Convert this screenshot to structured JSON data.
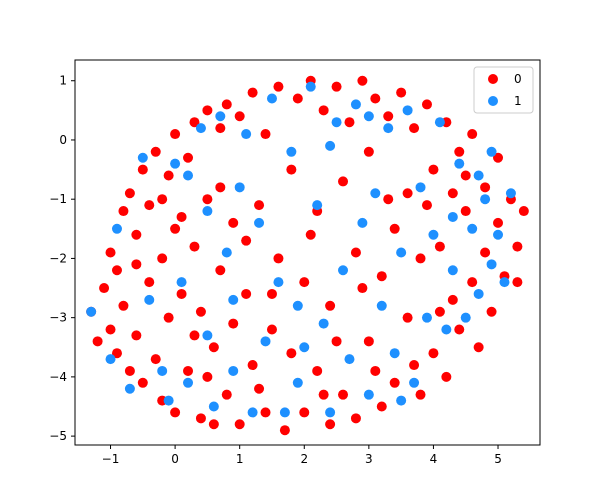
{
  "chart_data": {
    "type": "scatter",
    "title": "",
    "xlabel": "",
    "ylabel": "",
    "xlim": [
      -1.55,
      5.65
    ],
    "ylim": [
      -5.15,
      1.35
    ],
    "x_ticks": [
      -1,
      0,
      1,
      2,
      3,
      4,
      5
    ],
    "y_ticks": [
      1,
      0,
      -1,
      -2,
      -3,
      -4,
      -5
    ],
    "x_tick_labels": [
      "−1",
      "0",
      "1",
      "2",
      "3",
      "4",
      "5"
    ],
    "y_tick_labels": [
      "1",
      "0",
      "−1",
      "−2",
      "−3",
      "−4",
      "−5"
    ],
    "grid": false,
    "legend": {
      "placement": "top-right",
      "entries": [
        "0",
        "1"
      ]
    },
    "series": [
      {
        "name": "0",
        "color": "#ff0000",
        "points": [
          [
            -1.3,
            -2.9
          ],
          [
            -1.2,
            -3.4
          ],
          [
            -1.1,
            -2.5
          ],
          [
            -1.0,
            -3.2
          ],
          [
            -1.0,
            -1.9
          ],
          [
            -0.9,
            -3.6
          ],
          [
            -0.9,
            -2.2
          ],
          [
            -0.8,
            -1.2
          ],
          [
            -0.8,
            -2.8
          ],
          [
            -0.7,
            -3.9
          ],
          [
            -0.7,
            -0.9
          ],
          [
            -0.6,
            -1.6
          ],
          [
            -0.6,
            -3.3
          ],
          [
            -0.5,
            -0.5
          ],
          [
            -0.5,
            -4.1
          ],
          [
            -0.4,
            -2.4
          ],
          [
            -0.4,
            -1.1
          ],
          [
            -0.3,
            -3.7
          ],
          [
            -0.3,
            -0.2
          ],
          [
            -0.2,
            -2.0
          ],
          [
            -0.2,
            -4.4
          ],
          [
            -0.1,
            -0.6
          ],
          [
            -0.1,
            -3.0
          ],
          [
            0.0,
            0.1
          ],
          [
            0.0,
            -1.5
          ],
          [
            0.0,
            -4.6
          ],
          [
            0.1,
            -2.6
          ],
          [
            0.2,
            -0.3
          ],
          [
            0.2,
            -3.9
          ],
          [
            0.3,
            0.3
          ],
          [
            0.3,
            -1.8
          ],
          [
            0.4,
            -4.7
          ],
          [
            0.4,
            -2.9
          ],
          [
            0.5,
            0.5
          ],
          [
            0.5,
            -1.0
          ],
          [
            0.6,
            -3.5
          ],
          [
            0.6,
            -4.8
          ],
          [
            0.7,
            0.2
          ],
          [
            0.7,
            -2.2
          ],
          [
            0.8,
            -4.3
          ],
          [
            0.8,
            0.6
          ],
          [
            0.9,
            -1.4
          ],
          [
            0.9,
            -3.1
          ],
          [
            1.0,
            -4.8
          ],
          [
            1.0,
            0.4
          ],
          [
            1.1,
            -2.6
          ],
          [
            1.2,
            -3.8
          ],
          [
            1.2,
            0.8
          ],
          [
            1.3,
            -1.1
          ],
          [
            1.4,
            -4.6
          ],
          [
            1.4,
            0.1
          ],
          [
            1.5,
            -3.2
          ],
          [
            1.6,
            0.9
          ],
          [
            1.6,
            -2.0
          ],
          [
            1.7,
            -4.9
          ],
          [
            1.8,
            -0.5
          ],
          [
            1.8,
            -3.6
          ],
          [
            1.9,
            0.7
          ],
          [
            2.0,
            -2.4
          ],
          [
            2.0,
            -4.6
          ],
          [
            2.1,
            1.0
          ],
          [
            2.2,
            -1.2
          ],
          [
            2.2,
            -3.9
          ],
          [
            2.3,
            0.5
          ],
          [
            2.4,
            -4.8
          ],
          [
            2.4,
            -2.8
          ],
          [
            2.5,
            0.9
          ],
          [
            2.6,
            -0.7
          ],
          [
            2.6,
            -4.3
          ],
          [
            2.7,
            0.3
          ],
          [
            2.8,
            -1.9
          ],
          [
            2.8,
            -4.7
          ],
          [
            2.9,
            1.0
          ],
          [
            3.0,
            -3.4
          ],
          [
            3.0,
            -0.2
          ],
          [
            3.1,
            0.7
          ],
          [
            3.2,
            -4.5
          ],
          [
            3.2,
            -2.3
          ],
          [
            3.3,
            0.4
          ],
          [
            3.4,
            -1.5
          ],
          [
            3.4,
            -4.1
          ],
          [
            3.5,
            0.8
          ],
          [
            3.6,
            -3.0
          ],
          [
            3.6,
            -0.9
          ],
          [
            3.7,
            0.2
          ],
          [
            3.8,
            -4.3
          ],
          [
            3.8,
            -2.0
          ],
          [
            3.9,
            0.6
          ],
          [
            4.0,
            -3.6
          ],
          [
            4.0,
            -0.5
          ],
          [
            4.1,
            -1.8
          ],
          [
            4.2,
            0.3
          ],
          [
            4.2,
            -4.0
          ],
          [
            4.3,
            -2.7
          ],
          [
            4.4,
            -0.2
          ],
          [
            4.4,
            -3.2
          ],
          [
            4.5,
            -1.2
          ],
          [
            4.6,
            0.1
          ],
          [
            4.6,
            -2.4
          ],
          [
            4.7,
            -3.5
          ],
          [
            4.8,
            -0.8
          ],
          [
            4.8,
            -1.9
          ],
          [
            4.9,
            -2.9
          ],
          [
            5.0,
            -1.4
          ],
          [
            5.0,
            -0.3
          ],
          [
            5.1,
            -2.3
          ],
          [
            5.2,
            -1.0
          ],
          [
            5.3,
            -1.8
          ],
          [
            5.3,
            -2.4
          ],
          [
            5.4,
            -1.2
          ],
          [
            0.1,
            -1.3
          ],
          [
            0.3,
            -3.3
          ],
          [
            0.7,
            -0.8
          ],
          [
            1.1,
            -1.7
          ],
          [
            1.5,
            -2.6
          ],
          [
            2.1,
            -1.6
          ],
          [
            2.5,
            -3.4
          ],
          [
            2.9,
            -2.5
          ],
          [
            3.3,
            -1.0
          ],
          [
            3.7,
            -3.8
          ],
          [
            4.1,
            -2.9
          ],
          [
            4.5,
            -0.6
          ],
          [
            -0.6,
            -2.1
          ],
          [
            -0.2,
            -1.0
          ],
          [
            0.5,
            -4.0
          ],
          [
            1.3,
            -4.2
          ],
          [
            2.3,
            -4.3
          ],
          [
            3.1,
            -3.9
          ],
          [
            3.9,
            -1.1
          ],
          [
            4.3,
            -0.9
          ]
        ]
      },
      {
        "name": "1",
        "color": "#1e90ff",
        "points": [
          [
            -1.3,
            -2.9
          ],
          [
            -1.0,
            -3.7
          ],
          [
            -0.9,
            -1.5
          ],
          [
            -0.7,
            -4.2
          ],
          [
            -0.5,
            -0.3
          ],
          [
            -0.4,
            -2.7
          ],
          [
            -0.2,
            -3.9
          ],
          [
            0.0,
            -0.4
          ],
          [
            0.1,
            -2.4
          ],
          [
            0.2,
            -4.1
          ],
          [
            0.4,
            0.2
          ],
          [
            0.5,
            -1.2
          ],
          [
            0.5,
            -3.3
          ],
          [
            0.6,
            -4.5
          ],
          [
            0.7,
            0.4
          ],
          [
            0.8,
            -1.9
          ],
          [
            0.9,
            -3.9
          ],
          [
            1.1,
            0.1
          ],
          [
            1.2,
            -4.6
          ],
          [
            1.3,
            -1.4
          ],
          [
            1.4,
            -3.4
          ],
          [
            1.5,
            0.7
          ],
          [
            1.6,
            -2.4
          ],
          [
            1.7,
            -4.6
          ],
          [
            1.8,
            -0.2
          ],
          [
            1.9,
            -2.8
          ],
          [
            2.0,
            -3.5
          ],
          [
            2.1,
            0.9
          ],
          [
            2.2,
            -1.1
          ],
          [
            2.3,
            -3.1
          ],
          [
            2.4,
            -4.6
          ],
          [
            2.5,
            0.3
          ],
          [
            2.6,
            -2.2
          ],
          [
            2.7,
            -3.7
          ],
          [
            2.8,
            0.6
          ],
          [
            2.9,
            -1.4
          ],
          [
            3.0,
            -4.3
          ],
          [
            3.1,
            -0.9
          ],
          [
            3.2,
            -2.8
          ],
          [
            3.3,
            0.2
          ],
          [
            3.4,
            -3.6
          ],
          [
            3.5,
            -1.9
          ],
          [
            3.6,
            0.5
          ],
          [
            3.7,
            -4.1
          ],
          [
            3.8,
            -0.8
          ],
          [
            3.9,
            -3.0
          ],
          [
            4.0,
            -1.6
          ],
          [
            4.1,
            0.3
          ],
          [
            4.2,
            -3.2
          ],
          [
            4.3,
            -2.2
          ],
          [
            4.4,
            -0.4
          ],
          [
            4.5,
            -3.0
          ],
          [
            4.6,
            -1.5
          ],
          [
            4.7,
            -0.6
          ],
          [
            4.7,
            -2.6
          ],
          [
            4.8,
            -1.0
          ],
          [
            4.9,
            -2.1
          ],
          [
            4.9,
            -0.2
          ],
          [
            5.0,
            -1.6
          ],
          [
            5.1,
            -2.4
          ],
          [
            5.2,
            -0.9
          ],
          [
            0.2,
            -0.6
          ],
          [
            1.0,
            -0.8
          ],
          [
            2.4,
            -0.1
          ],
          [
            3.0,
            0.4
          ],
          [
            4.3,
            -1.3
          ],
          [
            -0.1,
            -4.4
          ],
          [
            1.9,
            -4.1
          ],
          [
            3.5,
            -4.4
          ],
          [
            0.9,
            -2.7
          ]
        ]
      }
    ]
  }
}
